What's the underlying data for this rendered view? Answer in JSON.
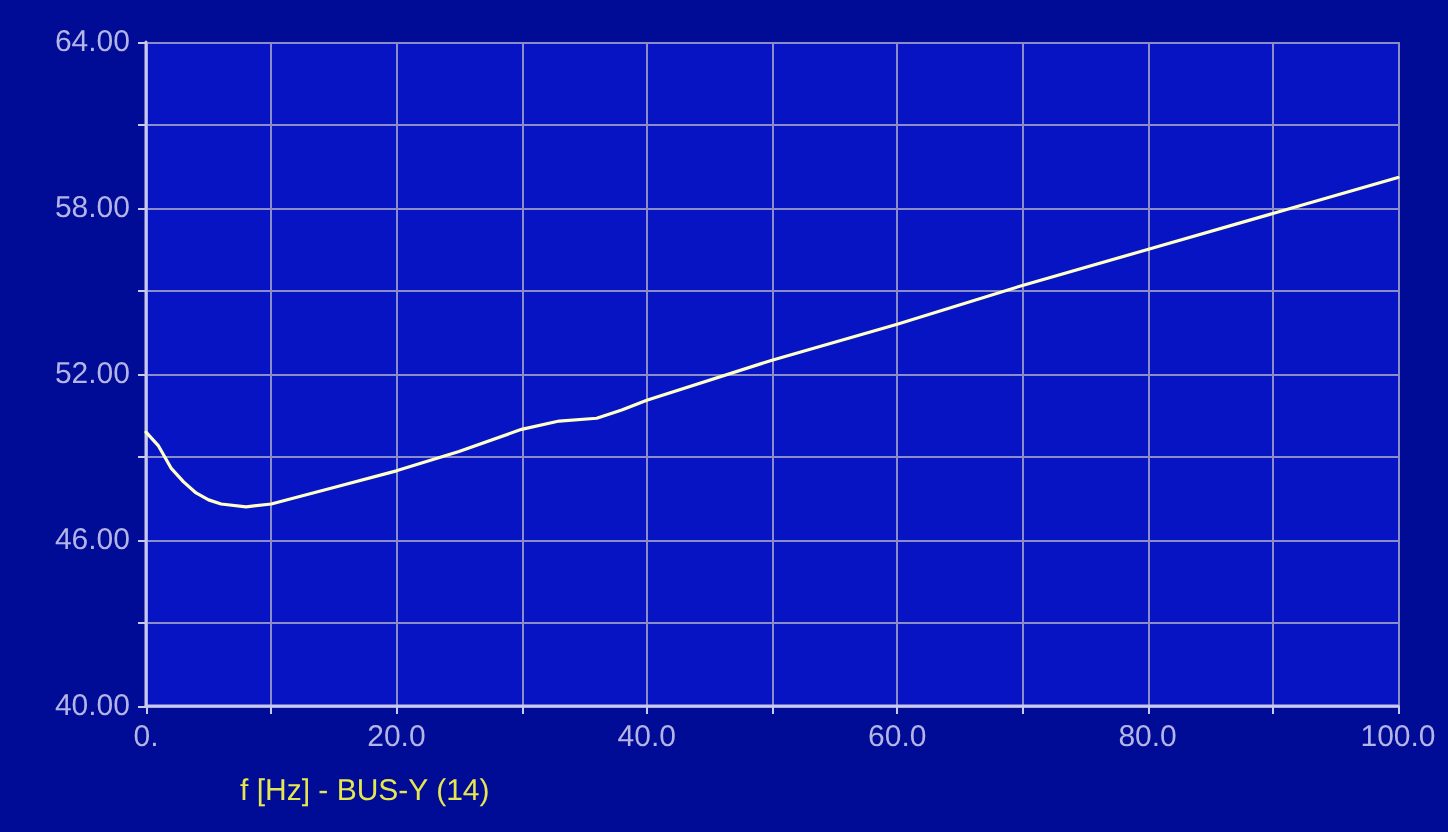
{
  "chart_data": {
    "type": "line",
    "xlabel": "f [Hz] - BUS-Y (14)",
    "x": [
      0,
      1,
      2,
      3,
      4,
      5,
      6,
      8,
      10,
      15,
      20,
      25,
      30,
      33,
      36,
      38,
      40,
      50,
      60,
      70,
      80,
      90,
      100
    ],
    "series": [
      {
        "color": "#ffffc8",
        "values": [
          49.9,
          49.4,
          48.6,
          48.1,
          47.7,
          47.45,
          47.3,
          47.2,
          47.3,
          47.9,
          48.5,
          49.2,
          50.0,
          50.3,
          50.4,
          50.7,
          51.05,
          52.5,
          53.8,
          55.2,
          56.5,
          57.8,
          59.1
        ]
      }
    ],
    "xlim": [
      0,
      100
    ],
    "xticks": [
      {
        "value": 0,
        "label": "0."
      },
      {
        "value": 10,
        "label": null
      },
      {
        "value": 20,
        "label": "20.0"
      },
      {
        "value": 30,
        "label": null
      },
      {
        "value": 40,
        "label": "40.0"
      },
      {
        "value": 50,
        "label": null
      },
      {
        "value": 60,
        "label": "60.0"
      },
      {
        "value": 70,
        "label": null
      },
      {
        "value": 80,
        "label": "80.0"
      },
      {
        "value": 90,
        "label": null
      },
      {
        "value": 100,
        "label": "100.0"
      }
    ],
    "ylim": [
      40,
      64
    ],
    "yticks": [
      {
        "value": 40,
        "label": "40.00"
      },
      {
        "value": 43,
        "label": null
      },
      {
        "value": 46,
        "label": "46.00"
      },
      {
        "value": 49,
        "label": null
      },
      {
        "value": 52,
        "label": "52.00"
      },
      {
        "value": 55,
        "label": null
      },
      {
        "value": 58,
        "label": "58.00"
      },
      {
        "value": 61,
        "label": null
      },
      {
        "value": 64,
        "label": "64.00"
      }
    ],
    "grid": true,
    "marker": "none",
    "line_style": "solid"
  }
}
